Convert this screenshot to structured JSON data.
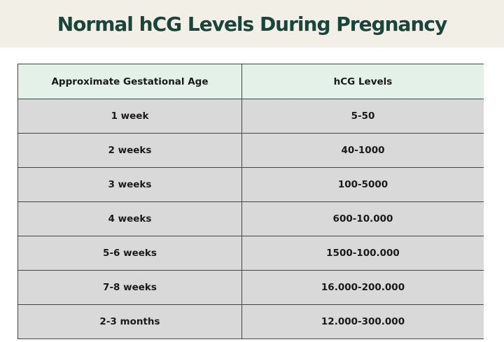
{
  "title": "Normal hCG Levels During Pregnancy",
  "table": {
    "headers": [
      "Approximate Gestational Age",
      "hCG Levels"
    ],
    "rows": [
      [
        "1 week",
        "5-50"
      ],
      [
        "2 weeks",
        "40-1000"
      ],
      [
        "3 weeks",
        "100-5000"
      ],
      [
        "4 weeks",
        "600-10.000"
      ],
      [
        "5-6 weeks",
        "1500-100.000"
      ],
      [
        "7-8 weeks",
        "16.000-200.000"
      ],
      [
        "2-3 months",
        "12.000-300.000"
      ]
    ]
  },
  "colors": {
    "title_band": "#f2efe6",
    "title_text": "#19463a",
    "header_bg": "#e3f1e8",
    "row_bg": "#d9d9d9",
    "border": "#444444"
  }
}
